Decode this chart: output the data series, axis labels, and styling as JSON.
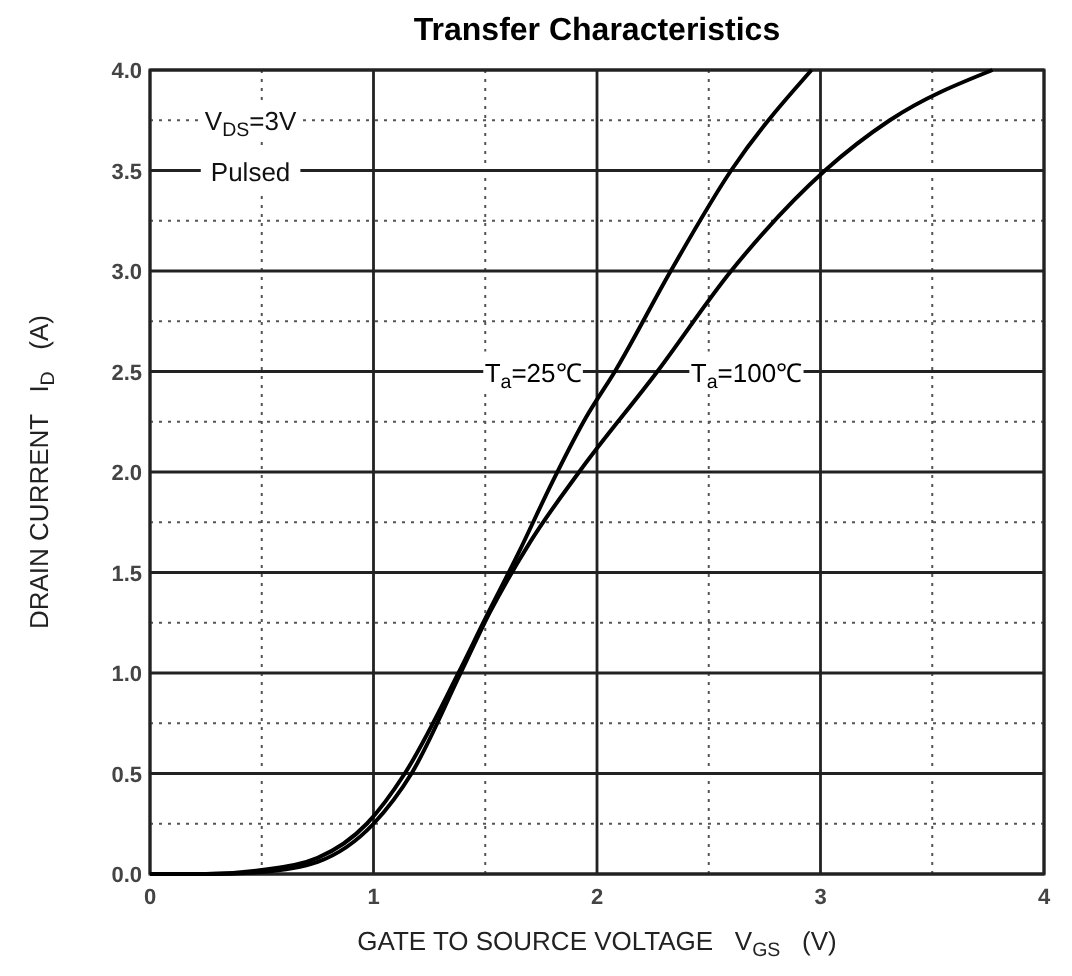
{
  "chart_data": {
    "type": "line",
    "title": "Transfer Characteristics",
    "xlabel": "GATE TO SOURCE VOLTAGE   V$_{GS}$   (V)",
    "ylabel": "DRAIN CURRENT   I$_{D}$   (A)",
    "annotations": [
      "V$_{DS}$=3V",
      "Pulsed"
    ],
    "xlim": [
      0,
      4
    ],
    "ylim": [
      0,
      4
    ],
    "xticks": [
      0,
      {
        "value": 0.5,
        "label": null
      },
      1,
      {
        "value": 1.5,
        "label": null
      },
      2,
      {
        "value": 2.5,
        "label": null
      },
      3,
      {
        "value": 3.5,
        "label": null
      },
      4
    ],
    "yticks": [
      {
        "value": 0,
        "label": "0.0"
      },
      {
        "value": 0.25,
        "label": null
      },
      {
        "value": 0.5,
        "label": "0.5"
      },
      {
        "value": 0.75,
        "label": null
      },
      {
        "value": 1,
        "label": "1.0"
      },
      {
        "value": 1.25,
        "label": null
      },
      {
        "value": 1.5,
        "label": "1.5"
      },
      {
        "value": 1.75,
        "label": null
      },
      {
        "value": 2,
        "label": "2.0"
      },
      {
        "value": 2.25,
        "label": null
      },
      {
        "value": 2.5,
        "label": "2.5"
      },
      {
        "value": 2.75,
        "label": null
      },
      {
        "value": 3,
        "label": "3.0"
      },
      {
        "value": 3.25,
        "label": null
      },
      {
        "value": 3.5,
        "label": "3.5"
      },
      {
        "value": 3.75,
        "label": null
      },
      {
        "value": 4,
        "label": "4.0"
      }
    ],
    "grid": true,
    "marker": "none",
    "line_style": "solid",
    "series": [
      {
        "name": "T$_{a}$=25℃",
        "color": "#000000",
        "x": [
          0,
          0.25,
          0.5,
          0.75,
          0.97,
          1.14,
          1.38,
          1.5,
          1.65,
          1.8,
          1.95,
          2.08,
          2.33,
          2.6,
          2.96
        ],
        "values": [
          0,
          0,
          0.02,
          0.08,
          0.25,
          0.5,
          1.0,
          1.27,
          1.6,
          1.95,
          2.27,
          2.5,
          3.0,
          3.5,
          4.0
        ]
      },
      {
        "name": "T$_{a}$=100℃",
        "color": "#000000",
        "x": [
          0,
          0.25,
          0.5,
          0.75,
          1.0,
          1.17,
          1.39,
          1.52,
          1.7,
          1.92,
          2.27,
          2.6,
          3.02,
          3.31,
          3.77
        ],
        "values": [
          0,
          0,
          0.01,
          0.06,
          0.25,
          0.5,
          1.0,
          1.3,
          1.65,
          2.0,
          2.5,
          3.0,
          3.5,
          3.75,
          4.0
        ]
      }
    ]
  }
}
